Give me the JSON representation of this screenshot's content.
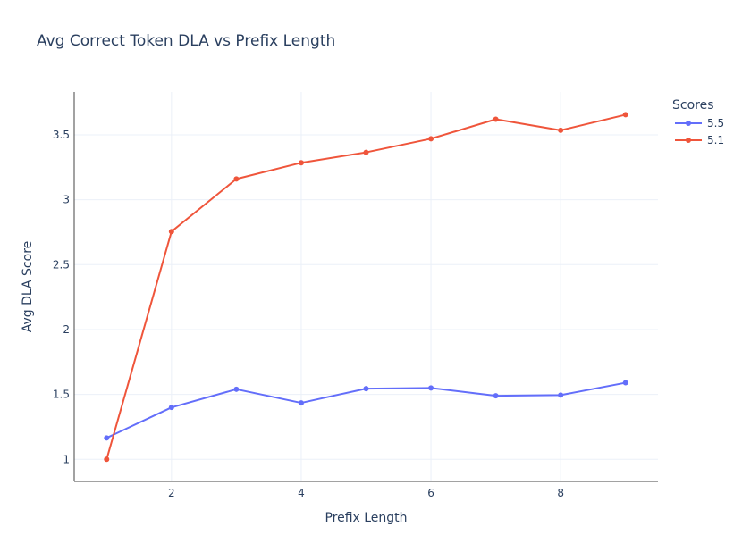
{
  "chart_data": {
    "type": "line",
    "title": "Avg Correct Token DLA vs Prefix Length",
    "xlabel": "Prefix Length",
    "ylabel": "Avg DLA Score",
    "x": [
      1,
      2,
      3,
      4,
      5,
      6,
      7,
      8,
      9
    ],
    "xlim": [
      0.5,
      9.5
    ],
    "ylim": [
      0.83,
      3.83
    ],
    "x_ticks": [
      2,
      4,
      6,
      8
    ],
    "x_tick_labels": [
      "2",
      "4",
      "6",
      "8"
    ],
    "y_ticks": [
      1,
      1.5,
      2,
      2.5,
      3,
      3.5
    ],
    "y_tick_labels": [
      "1",
      "1.5",
      "2",
      "2.5",
      "3",
      "3.5"
    ],
    "grid": true,
    "legend_title": "Scores",
    "legend_position": "top-right-outside",
    "series": [
      {
        "name": "5.5",
        "color": "#636efa",
        "values": [
          1.165,
          1.4,
          1.54,
          1.435,
          1.545,
          1.55,
          1.49,
          1.495,
          1.59
        ]
      },
      {
        "name": "5.1",
        "color": "#ef553b",
        "values": [
          1.0,
          2.755,
          3.16,
          3.285,
          3.365,
          3.47,
          3.62,
          3.535,
          3.655
        ]
      }
    ]
  }
}
